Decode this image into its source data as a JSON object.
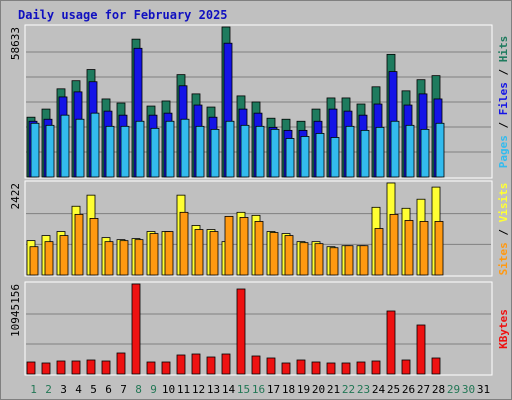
{
  "chart_data": [
    {
      "type": "bar",
      "title": "Daily usage for February 2025",
      "ylim": [
        0,
        58633
      ],
      "yticks": [
        58633
      ],
      "legend_separator": " / ",
      "series": [
        {
          "name": "Hits",
          "color": "#1e7b5e",
          "values": [
            23375,
            26545,
            34470,
            37640,
            42000,
            30510,
            28920,
            53880,
            27730,
            29715,
            40015,
            32490,
            27340,
            58633,
            31700,
            29320,
            22980,
            22580,
            21790,
            26545,
            30900,
            30900,
            28525,
            35260,
            47940,
            33680,
            38035,
            39620,
            null,
            null,
            null
          ]
        },
        {
          "name": "Files",
          "color": "#1414e6",
          "values": [
            21790,
            22580,
            31300,
            33280,
            37240,
            25750,
            24170,
            50310,
            24170,
            24960,
            35660,
            28130,
            23375,
            52300,
            26545,
            24960,
            19410,
            18225,
            18225,
            21790,
            26545,
            25750,
            24170,
            28525,
            41200,
            28130,
            32490,
            30510,
            null,
            null,
            null
          ]
        },
        {
          "name": "Pages",
          "color": "#33bbee",
          "values": [
            21000,
            20200,
            24170,
            22580,
            24960,
            19810,
            19810,
            21790,
            19020,
            21790,
            22580,
            19810,
            18620,
            21790,
            20200,
            19810,
            18620,
            15055,
            15850,
            17035,
            15450,
            19810,
            18225,
            19410,
            21790,
            20200,
            18620,
            21000,
            null,
            null,
            null
          ]
        }
      ]
    },
    {
      "type": "bar",
      "ylim": [
        0,
        2422
      ],
      "yticks": [
        2422
      ],
      "legend_separator": " / ",
      "series": [
        {
          "name": "Visits",
          "color": "#ffff33",
          "values": [
            905,
            1038,
            1144,
            1810,
            2102,
            984,
            931,
            958,
            1144,
            1144,
            2102,
            1304,
            1197,
            878,
            1650,
            1570,
            1144,
            1091,
            878,
            878,
            745,
            771,
            771,
            1782,
            2422,
            1756,
            1995,
            2314,
            null,
            null,
            null
          ]
        },
        {
          "name": "Sites",
          "color": "#ff9911",
          "values": [
            745,
            878,
            1038,
            1596,
            1490,
            878,
            904,
            931,
            1091,
            1144,
            1650,
            1197,
            1144,
            1543,
            1516,
            1410,
            1117,
            1038,
            851,
            825,
            718,
            771,
            771,
            1224,
            1596,
            1436,
            1410,
            1410,
            null,
            null,
            null
          ]
        }
      ]
    },
    {
      "type": "bar",
      "ylim": [
        0,
        10945156
      ],
      "yticks": [
        10945156
      ],
      "categories": [
        "1",
        "2",
        "3",
        "4",
        "5",
        "6",
        "7",
        "8",
        "9",
        "10",
        "11",
        "12",
        "13",
        "14",
        "15",
        "16",
        "17",
        "18",
        "19",
        "20",
        "21",
        "22",
        "23",
        "24",
        "25",
        "26",
        "27",
        "28",
        "29",
        "30",
        "31"
      ],
      "weekend_days": [
        "1",
        "2",
        "8",
        "9",
        "15",
        "16",
        "22",
        "23",
        "29",
        "30"
      ],
      "weekend_color": "#227755",
      "weekday_color": "#000000",
      "series": [
        {
          "name": "KBytes",
          "color": "#ee1111",
          "values": [
            1459000,
            1338000,
            1581000,
            1581000,
            1703000,
            1581000,
            2554000,
            10945156,
            1459000,
            1459000,
            2311000,
            2432000,
            2067000,
            2432000,
            10337000,
            2189000,
            1946000,
            1338000,
            1703000,
            1459000,
            1338000,
            1338000,
            1459000,
            1581000,
            7662000,
            1703000,
            5959000,
            1946000,
            null,
            null,
            null
          ]
        }
      ]
    }
  ]
}
